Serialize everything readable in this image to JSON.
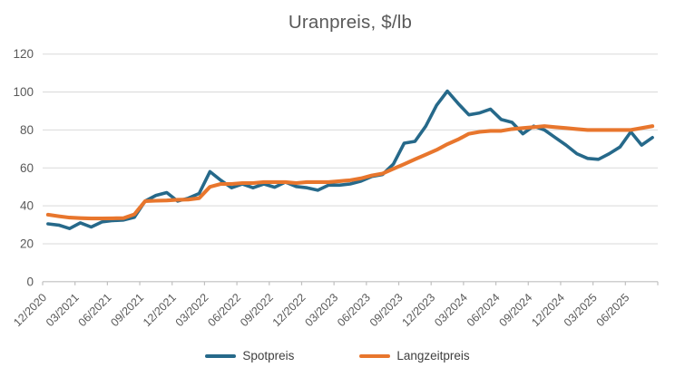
{
  "title": "Uranpreis, $/lb",
  "chart_data": {
    "type": "line",
    "title": "Uranpreis, $/lb",
    "categories": [
      "12/2020",
      "01/2021",
      "02/2021",
      "03/2021",
      "04/2021",
      "05/2021",
      "06/2021",
      "07/2021",
      "08/2021",
      "09/2021",
      "10/2021",
      "11/2021",
      "12/2021",
      "01/2022",
      "02/2022",
      "03/2022",
      "04/2022",
      "05/2022",
      "06/2022",
      "07/2022",
      "08/2022",
      "09/2022",
      "10/2022",
      "11/2022",
      "12/2022",
      "01/2023",
      "02/2023",
      "03/2023",
      "04/2023",
      "05/2023",
      "06/2023",
      "07/2023",
      "08/2023",
      "09/2023",
      "10/2023",
      "11/2023",
      "12/2023",
      "01/2024",
      "02/2024",
      "03/2024",
      "04/2024",
      "05/2024",
      "06/2024",
      "07/2024",
      "08/2024",
      "09/2024",
      "10/2024",
      "11/2024",
      "12/2024",
      "01/2025",
      "02/2025",
      "03/2025",
      "04/2025",
      "05/2025",
      "06/2025",
      "07/2025",
      "08/2025"
    ],
    "x_tick_labels": [
      "12/2020",
      "03/2021",
      "06/2021",
      "09/2021",
      "12/2021",
      "03/2022",
      "06/2022",
      "09/2022",
      "12/2022",
      "03/2023",
      "06/2023",
      "09/2023",
      "12/2023",
      "03/2024",
      "06/2024",
      "09/2024",
      "12/2024",
      "03/2025",
      "06/2025"
    ],
    "x_tick_every": 3,
    "series": [
      {
        "name": "Spotpreis",
        "color": "#26698A",
        "values": [
          30.5,
          29.8,
          28,
          31,
          28.8,
          31.5,
          32.2,
          32.5,
          34,
          42.5,
          45.5,
          47,
          42.5,
          44,
          46.5,
          58,
          53.5,
          49.5,
          51.5,
          49.5,
          51.5,
          49.8,
          52.5,
          50.2,
          49.5,
          48.2,
          50.9,
          50.9,
          51.5,
          53,
          55.5,
          56.5,
          62,
          73,
          74,
          82,
          93,
          100.5,
          94,
          88,
          89,
          91,
          85.5,
          84,
          78,
          82,
          80,
          76,
          72,
          67.5,
          65,
          64.5,
          67.5,
          71,
          79,
          72,
          76
        ]
      },
      {
        "name": "Langzeitpreis",
        "color": "#E8762D",
        "values": [
          35.3,
          34.5,
          33.8,
          33.5,
          33.3,
          33.3,
          33.4,
          33.5,
          35.5,
          42.5,
          42.7,
          42.8,
          43.2,
          43.3,
          44,
          50,
          51.5,
          51.5,
          52,
          52,
          52.5,
          52.5,
          52.5,
          52,
          52.5,
          52.5,
          52.5,
          53,
          53.5,
          54.5,
          56,
          57,
          59.5,
          62,
          64.5,
          67,
          69.5,
          72.5,
          75,
          78,
          79,
          79.5,
          79.5,
          80.5,
          81,
          81.5,
          82,
          81.5,
          81,
          80.5,
          80,
          80,
          80,
          80,
          80,
          81,
          82
        ]
      }
    ],
    "ylim": [
      0,
      120
    ],
    "y_tick_step": 20,
    "y_tick_labels": [
      "0",
      "20",
      "40",
      "60",
      "80",
      "100",
      "120"
    ],
    "grid": "horizontal",
    "legend_position": "bottom"
  },
  "style_colors": {
    "title_text": "#595959",
    "axis_text": "#595959",
    "legend_text": "#404040",
    "gridline": "#D9D9D9",
    "axis_line": "#BFBFBF"
  }
}
